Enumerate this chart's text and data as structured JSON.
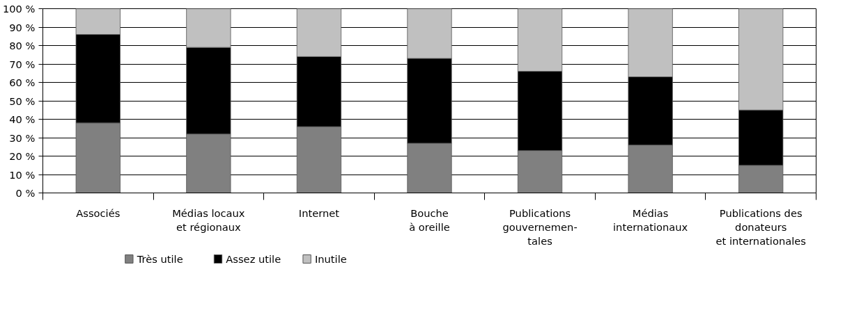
{
  "chart_data": {
    "type": "bar",
    "stacked": true,
    "categories": [
      "Associés",
      "Médias locaux\net régionaux",
      "Internet",
      "Bouche\nà oreille",
      "Publications\ngouvernemen-\ntales",
      "Médias\ninternationaux",
      "Publications des\ndonateurs\net internationales"
    ],
    "series": [
      {
        "name": "Très utile",
        "color": "#808080",
        "values": [
          38,
          32,
          36,
          27,
          23,
          26,
          15
        ]
      },
      {
        "name": "Assez utile",
        "color": "#000000",
        "values": [
          48,
          47,
          38,
          46,
          43,
          37,
          30
        ]
      },
      {
        "name": "Inutile",
        "color": "#c0c0c0",
        "values": [
          14,
          21,
          26,
          27,
          34,
          37,
          55
        ]
      }
    ],
    "ylim": [
      0,
      100
    ],
    "yticks": [
      {
        "value": 0,
        "label": "0 %"
      },
      {
        "value": 10,
        "label": "10 %"
      },
      {
        "value": 20,
        "label": "20 %"
      },
      {
        "value": 30,
        "label": "30 %"
      },
      {
        "value": 40,
        "label": "40 %"
      },
      {
        "value": 50,
        "label": "50 %"
      },
      {
        "value": 60,
        "label": "60 %"
      },
      {
        "value": 70,
        "label": "70 %"
      },
      {
        "value": 80,
        "label": "80 %"
      },
      {
        "value": 90,
        "label": "90 %"
      },
      {
        "value": 100,
        "label": "100 %"
      }
    ],
    "grid": "y",
    "legend": "bottom left"
  }
}
